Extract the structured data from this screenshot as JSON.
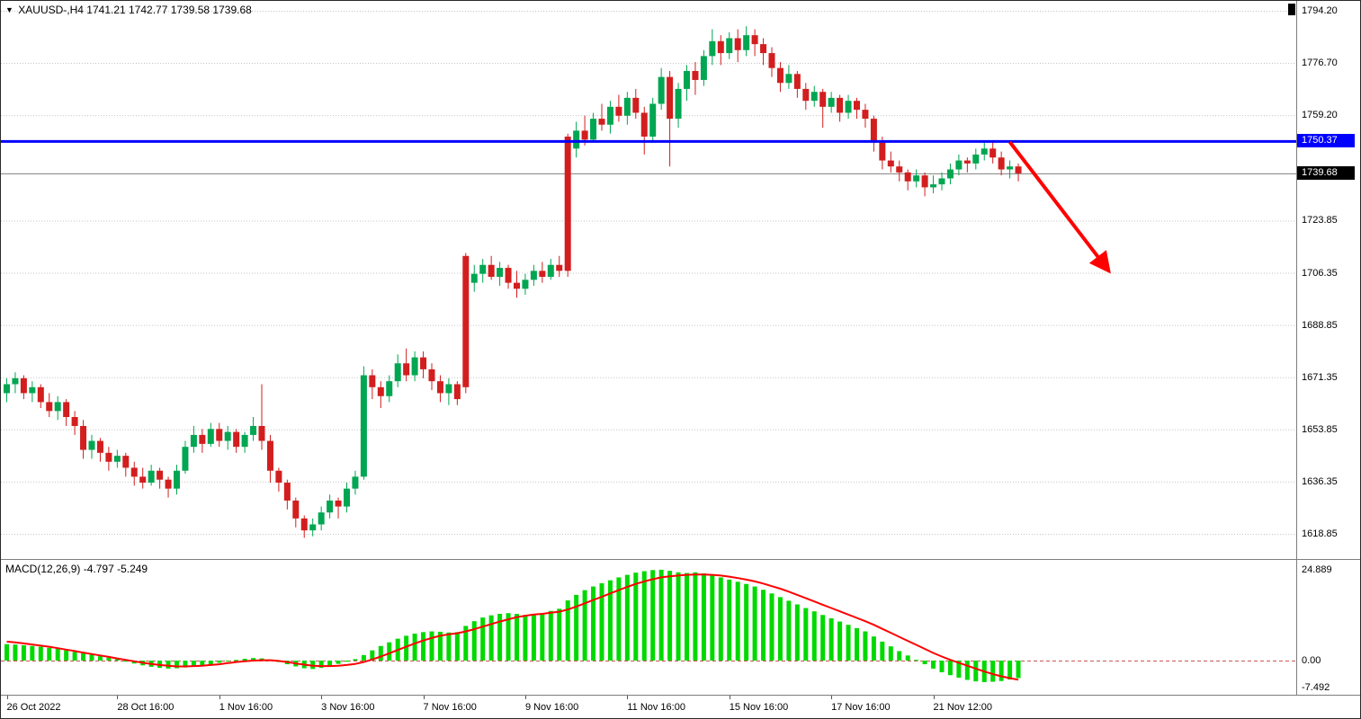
{
  "header": {
    "collapse_icon": "▼",
    "symbol_timeframe": "XAUUSD-,H4",
    "ohlc": "1741.21 1742.77 1739.58 1739.68"
  },
  "macd_header": {
    "name": "MACD(12,26,9)",
    "values": "-4.797 -5.249"
  },
  "price_axis": {
    "gridlines": [
      {
        "label": "1794.20",
        "value": 1794.2
      },
      {
        "label": "1776.70",
        "value": 1776.7
      },
      {
        "label": "1759.20",
        "value": 1759.2
      },
      {
        "label": "1723.85",
        "value": 1723.85
      },
      {
        "label": "1706.35",
        "value": 1706.35
      },
      {
        "label": "1688.85",
        "value": 1688.85
      },
      {
        "label": "1671.35",
        "value": 1671.35
      },
      {
        "label": "1653.85",
        "value": 1653.85
      },
      {
        "label": "1636.35",
        "value": 1636.35
      },
      {
        "label": "1618.85",
        "value": 1618.85
      }
    ]
  },
  "overlays": {
    "hline": {
      "label": "1750.37",
      "value": 1750.37,
      "color": "#0000fe"
    },
    "bid": {
      "label": "1739.68",
      "value": 1739.68,
      "color": "#808080"
    },
    "arrow": {
      "color": "#ff0000",
      "from_bar": 118,
      "from_price": 1750.2,
      "to_bar": 129.5,
      "to_price": 1707.5
    }
  },
  "time_axis": {
    "labels": [
      {
        "text": "26 Oct 2022",
        "bar": 0
      },
      {
        "text": "28 Oct 16:00",
        "bar": 13
      },
      {
        "text": "1 Nov 16:00",
        "bar": 25
      },
      {
        "text": "3 Nov 16:00",
        "bar": 37
      },
      {
        "text": "7 Nov 16:00",
        "bar": 49
      },
      {
        "text": "9 Nov 16:00",
        "bar": 61
      },
      {
        "text": "11 Nov 16:00",
        "bar": 73
      },
      {
        "text": "15 Nov 16:00",
        "bar": 85
      },
      {
        "text": "17 Nov 16:00",
        "bar": 97
      },
      {
        "text": "21 Nov 12:00",
        "bar": 109
      }
    ]
  },
  "chart_data": [
    {
      "type": "candlestick",
      "title": "XAUUSD- H4",
      "price_range_shown": [
        1618.85,
        1794.2
      ],
      "up_color": "#00a651",
      "down_color": "#d21e1e",
      "candles": [
        [
          1666,
          1671,
          1663,
          1669
        ],
        [
          1669,
          1673,
          1666,
          1671
        ],
        [
          1671,
          1672,
          1664,
          1666
        ],
        [
          1666,
          1670,
          1663,
          1668
        ],
        [
          1668,
          1669,
          1661,
          1663
        ],
        [
          1663,
          1666,
          1658,
          1660
        ],
        [
          1660,
          1665,
          1657,
          1663
        ],
        [
          1663,
          1664,
          1655,
          1658
        ],
        [
          1658,
          1660,
          1652,
          1655
        ],
        [
          1655,
          1657,
          1644,
          1647
        ],
        [
          1647,
          1652,
          1644,
          1650
        ],
        [
          1650,
          1651,
          1643,
          1646
        ],
        [
          1646,
          1648,
          1640,
          1643
        ],
        [
          1643,
          1647,
          1641,
          1645
        ],
        [
          1645,
          1646,
          1638,
          1641
        ],
        [
          1641,
          1643,
          1635,
          1638
        ],
        [
          1638,
          1641,
          1634,
          1636
        ],
        [
          1636,
          1642,
          1635,
          1640
        ],
        [
          1640,
          1641,
          1634,
          1637
        ],
        [
          1637,
          1638,
          1631,
          1634
        ],
        [
          1634,
          1642,
          1632,
          1640
        ],
        [
          1640,
          1650,
          1639,
          1648
        ],
        [
          1648,
          1655,
          1646,
          1652
        ],
        [
          1652,
          1654,
          1646,
          1649
        ],
        [
          1649,
          1656,
          1648,
          1654
        ],
        [
          1654,
          1656,
          1648,
          1650
        ],
        [
          1650,
          1655,
          1647,
          1653
        ],
        [
          1653,
          1654,
          1646,
          1648
        ],
        [
          1648,
          1653,
          1646,
          1652
        ],
        [
          1652,
          1658,
          1650,
          1655
        ],
        [
          1655,
          1669,
          1647,
          1650
        ],
        [
          1650,
          1652,
          1636,
          1640
        ],
        [
          1640,
          1641,
          1633,
          1636
        ],
        [
          1636,
          1637,
          1627,
          1630
        ],
        [
          1630,
          1631,
          1621,
          1624
        ],
        [
          1624,
          1625,
          1617.5,
          1620
        ],
        [
          1620,
          1624,
          1618,
          1622
        ],
        [
          1622,
          1628,
          1620,
          1626
        ],
        [
          1626,
          1632,
          1624,
          1630
        ],
        [
          1630,
          1631,
          1624,
          1628
        ],
        [
          1628,
          1636,
          1626,
          1634
        ],
        [
          1634,
          1640,
          1632,
          1638
        ],
        [
          1638,
          1675,
          1637,
          1672
        ],
        [
          1672,
          1674,
          1664,
          1668
        ],
        [
          1668,
          1670,
          1661,
          1665
        ],
        [
          1665,
          1672,
          1663,
          1670
        ],
        [
          1670,
          1679,
          1668,
          1676
        ],
        [
          1676,
          1681,
          1670,
          1672
        ],
        [
          1672,
          1680,
          1670,
          1678
        ],
        [
          1678,
          1680,
          1671,
          1674
        ],
        [
          1674,
          1676,
          1667,
          1670
        ],
        [
          1670,
          1672,
          1663,
          1666
        ],
        [
          1666,
          1671,
          1662,
          1669
        ],
        [
          1669,
          1670,
          1662,
          1664
        ],
        [
          1712,
          1713,
          1666,
          1668
        ],
        [
          1703,
          1709,
          1700,
          1706
        ],
        [
          1706,
          1711,
          1703,
          1709
        ],
        [
          1709,
          1712,
          1704,
          1705
        ],
        [
          1705,
          1710,
          1702,
          1708
        ],
        [
          1708,
          1709,
          1701,
          1703
        ],
        [
          1703,
          1707,
          1698,
          1701
        ],
        [
          1701,
          1706,
          1699,
          1704
        ],
        [
          1704,
          1709,
          1702,
          1707
        ],
        [
          1707,
          1710,
          1703,
          1705
        ],
        [
          1705,
          1711,
          1704,
          1709
        ],
        [
          1709,
          1712,
          1705,
          1707
        ],
        [
          1752,
          1753,
          1705,
          1707
        ],
        [
          1748,
          1757,
          1745,
          1754
        ],
        [
          1754,
          1759,
          1749,
          1751
        ],
        [
          1751,
          1760,
          1750,
          1758
        ],
        [
          1758,
          1763,
          1754,
          1756
        ],
        [
          1756,
          1764,
          1753,
          1762
        ],
        [
          1762,
          1766,
          1757,
          1759
        ],
        [
          1759,
          1767,
          1756,
          1765
        ],
        [
          1765,
          1768,
          1758,
          1760
        ],
        [
          1760,
          1762,
          1746,
          1752
        ],
        [
          1752,
          1765,
          1750,
          1763
        ],
        [
          1763,
          1775,
          1761,
          1772
        ],
        [
          1772,
          1774,
          1742,
          1758
        ],
        [
          1758,
          1770,
          1755,
          1768
        ],
        [
          1768,
          1776,
          1764,
          1774
        ],
        [
          1774,
          1777,
          1766,
          1771
        ],
        [
          1771,
          1781,
          1769,
          1779
        ],
        [
          1779,
          1788,
          1776,
          1784
        ],
        [
          1784,
          1786,
          1776,
          1780
        ],
        [
          1780,
          1787,
          1778,
          1785
        ],
        [
          1785,
          1788,
          1777,
          1781
        ],
        [
          1781,
          1789,
          1779,
          1786
        ],
        [
          1786,
          1788,
          1779,
          1783
        ],
        [
          1783,
          1785,
          1776,
          1780
        ],
        [
          1780,
          1782,
          1772,
          1775
        ],
        [
          1775,
          1777,
          1767,
          1770
        ],
        [
          1770,
          1776,
          1768,
          1773
        ],
        [
          1773,
          1774,
          1765,
          1768
        ],
        [
          1768,
          1770,
          1761,
          1764
        ],
        [
          1764,
          1769,
          1762,
          1767
        ],
        [
          1767,
          1768,
          1755,
          1762
        ],
        [
          1762,
          1767,
          1760,
          1765
        ],
        [
          1765,
          1766,
          1757,
          1760
        ],
        [
          1760,
          1766,
          1758,
          1764
        ],
        [
          1764,
          1765,
          1758,
          1761
        ],
        [
          1761,
          1763,
          1755,
          1758
        ],
        [
          1758,
          1759,
          1747,
          1750
        ],
        [
          1750,
          1752,
          1741,
          1744
        ],
        [
          1744,
          1747,
          1740,
          1742
        ],
        [
          1742,
          1744,
          1737,
          1740
        ],
        [
          1740,
          1741,
          1734,
          1737
        ],
        [
          1737,
          1741,
          1735,
          1739
        ],
        [
          1739,
          1740,
          1732,
          1735
        ],
        [
          1735,
          1739,
          1733,
          1736
        ],
        [
          1736,
          1740,
          1734,
          1738
        ],
        [
          1738,
          1743,
          1736,
          1741
        ],
        [
          1741,
          1746,
          1739,
          1744
        ],
        [
          1744,
          1745,
          1740,
          1743
        ],
        [
          1743,
          1748,
          1741,
          1746
        ],
        [
          1746,
          1750,
          1744,
          1748
        ],
        [
          1748,
          1750.4,
          1743,
          1745
        ],
        [
          1745,
          1747,
          1739,
          1741
        ],
        [
          1741,
          1744,
          1738,
          1742
        ],
        [
          1742,
          1743,
          1737,
          1739.68
        ]
      ]
    },
    {
      "type": "macd",
      "label": "MACD(12,26,9)",
      "current_macd": -4.797,
      "current_signal": -5.249,
      "histogram_color": "#00d900",
      "signal_color": "#ff0000",
      "axis_labels": [
        {
          "label": "24.889",
          "value": 24.889
        },
        {
          "label": "0.00",
          "value": 0
        },
        {
          "label": "-7.492",
          "value": -7.492
        }
      ],
      "histogram": [
        4.5,
        4.4,
        4.2,
        4.0,
        3.8,
        3.5,
        3.2,
        2.8,
        2.4,
        2.0,
        1.6,
        1.2,
        0.8,
        0.4,
        -0.3,
        -0.8,
        -1.3,
        -1.7,
        -2.0,
        -2.2,
        -2.1,
        -1.9,
        -1.6,
        -1.3,
        -1.0,
        -0.6,
        -0.2,
        0.2,
        0.5,
        0.7,
        0.6,
        0.3,
        -0.4,
        -1.0,
        -1.6,
        -2.1,
        -2.3,
        -2.0,
        -1.5,
        -0.9,
        -0.3,
        0.4,
        1.5,
        2.8,
        4.0,
        5.0,
        6.0,
        6.8,
        7.4,
        7.8,
        8.0,
        7.9,
        7.7,
        7.8,
        9.5,
        10.8,
        11.8,
        12.4,
        12.8,
        13.0,
        12.8,
        12.5,
        12.6,
        13.0,
        13.6,
        14.2,
        16.5,
        18.0,
        19.3,
        20.3,
        21.2,
        22.0,
        22.8,
        23.5,
        24.1,
        24.5,
        24.8,
        24.889,
        24.6,
        24.2,
        24.0,
        24.2,
        23.9,
        23.4,
        22.8,
        22.2,
        21.6,
        21.0,
        20.3,
        19.4,
        18.4,
        17.4,
        16.4,
        15.4,
        14.4,
        13.5,
        12.5,
        11.6,
        10.7,
        9.8,
        8.9,
        8.0,
        6.6,
        5.2,
        3.9,
        2.6,
        1.4,
        0.2,
        -1.0,
        -2.2,
        -3.2,
        -4.0,
        -4.7,
        -5.3,
        -5.7,
        -5.9,
        -5.8,
        -5.6,
        -5.2,
        -4.797
      ],
      "signal": [
        5.2,
        5.0,
        4.7,
        4.4,
        4.1,
        3.8,
        3.4,
        3.0,
        2.6,
        2.2,
        1.8,
        1.4,
        1.0,
        0.6,
        0.2,
        -0.2,
        -0.6,
        -0.9,
        -1.2,
        -1.4,
        -1.6,
        -1.6,
        -1.5,
        -1.4,
        -1.2,
        -1.0,
        -0.7,
        -0.4,
        -0.2,
        0.0,
        0.1,
        0.1,
        -0.1,
        -0.4,
        -0.8,
        -1.1,
        -1.4,
        -1.5,
        -1.5,
        -1.4,
        -1.2,
        -0.9,
        -0.4,
        0.3,
        1.1,
        2.0,
        2.9,
        3.8,
        4.7,
        5.5,
        6.2,
        6.8,
        7.2,
        7.5,
        8.0,
        8.6,
        9.3,
        10.0,
        10.7,
        11.3,
        11.9,
        12.3,
        12.6,
        12.8,
        13.1,
        13.4,
        14.0,
        14.8,
        15.7,
        16.6,
        17.5,
        18.4,
        19.3,
        20.2,
        21.0,
        21.7,
        22.3,
        22.8,
        23.1,
        23.3,
        23.5,
        23.6,
        23.6,
        23.5,
        23.3,
        23.0,
        22.6,
        22.2,
        21.7,
        21.1,
        20.4,
        19.7,
        18.9,
        18.0,
        17.1,
        16.2,
        15.3,
        14.4,
        13.5,
        12.6,
        11.7,
        10.8,
        9.8,
        8.7,
        7.6,
        6.5,
        5.4,
        4.3,
        3.2,
        2.1,
        1.1,
        0.2,
        -0.6,
        -1.4,
        -2.2,
        -3.0,
        -3.7,
        -4.3,
        -4.8,
        -5.249
      ]
    }
  ]
}
